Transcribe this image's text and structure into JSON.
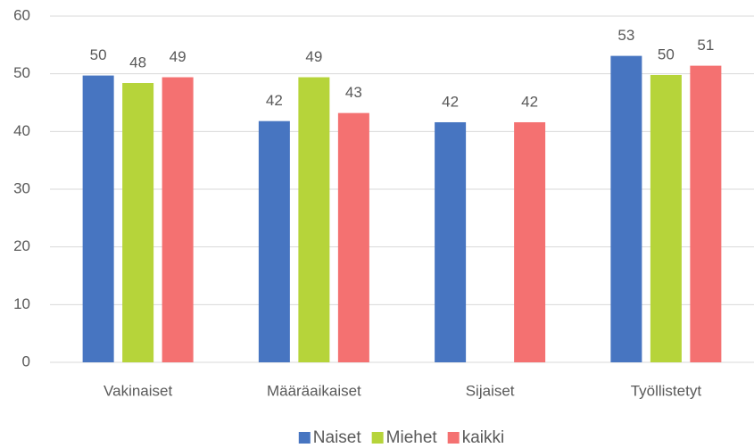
{
  "chart_data": {
    "type": "bar",
    "categories": [
      "Vakinaiset",
      "Määräaikaiset",
      "Sijaiset",
      "Työllistetyt"
    ],
    "series": [
      {
        "name": "Naiset",
        "color": "#4775c1",
        "values": [
          49.7,
          41.8,
          41.6,
          53.1
        ],
        "value_labels": [
          "50",
          "42",
          "42",
          "53"
        ]
      },
      {
        "name": "Miehet",
        "color": "#b6d43a",
        "values": [
          48.4,
          49.4,
          null,
          49.8
        ],
        "value_labels": [
          "48",
          "49",
          null,
          "50"
        ]
      },
      {
        "name": "kaikki",
        "color": "#f47171",
        "values": [
          49.4,
          43.2,
          41.6,
          51.4
        ],
        "value_labels": [
          "49",
          "43",
          "42",
          "51"
        ]
      }
    ],
    "ylim": [
      0,
      60
    ],
    "yticks": [
      0,
      10,
      20,
      30,
      40,
      50,
      60
    ],
    "grid": true,
    "legend": "bottom"
  }
}
